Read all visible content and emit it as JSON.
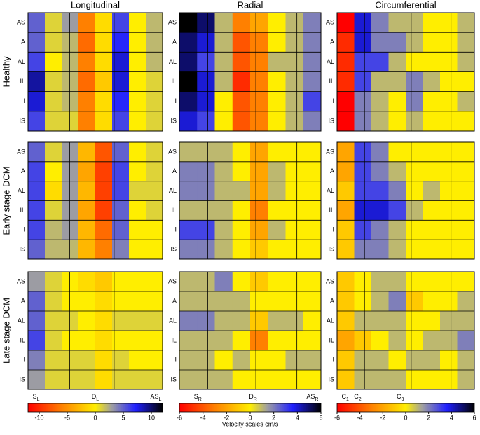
{
  "chart_data": {
    "type": "heatmap",
    "column_titles": [
      "Longitudinal",
      "Radial",
      "Circumferential"
    ],
    "row_titles": [
      "Healthy",
      "Early stage DCM",
      "Late stage DCM"
    ],
    "segments": [
      "AS",
      "A",
      "AL",
      "IL",
      "I",
      "IS"
    ],
    "colorbar_label": "Velocity scales cm/s",
    "scales": [
      {
        "lim": [
          -12,
          12
        ],
        "ticks": [
          -10,
          -5,
          0,
          5,
          10
        ],
        "events": [
          {
            "main": "S",
            "sub": "L"
          },
          {
            "main": "D",
            "sub": "L"
          },
          {
            "main": "AS",
            "sub": "L"
          }
        ]
      },
      {
        "lim": [
          -6,
          6
        ],
        "ticks": [
          -6,
          -4,
          -2,
          0,
          2,
          4,
          6
        ],
        "events": [
          {
            "main": "S",
            "sub": "R"
          },
          {
            "main": "D",
            "sub": "R"
          },
          {
            "main": "AS",
            "sub": "R"
          }
        ]
      },
      {
        "lim": [
          -6,
          6
        ],
        "ticks": [
          -6,
          -4,
          -2,
          0,
          2,
          4,
          6
        ],
        "events": [
          {
            "main": "C",
            "sub": "1"
          },
          {
            "main": "C",
            "sub": "2"
          },
          {
            "main": "C",
            "sub": "3"
          }
        ]
      }
    ],
    "panels": [
      [
        {
          "values": [
            [
              5,
              1,
              3,
              -6,
              -1,
              6,
              0,
              2
            ],
            [
              5,
              1,
              2,
              -7,
              -1,
              7,
              0,
              2
            ],
            [
              6,
              0,
              2,
              -6,
              -1,
              8,
              0,
              2
            ],
            [
              9,
              1,
              2,
              -7,
              -2,
              8,
              0,
              1
            ],
            [
              8,
              1,
              2,
              -6,
              -1,
              7,
              0,
              1
            ],
            [
              6,
              1,
              1,
              -6,
              -1,
              6,
              0,
              1
            ]
          ]
        },
        {
          "values": [
            [
              6,
              5,
              1,
              -3,
              -2,
              0,
              1,
              2
            ],
            [
              5,
              4,
              1,
              -4,
              -3,
              0,
              1,
              2
            ],
            [
              5,
              3,
              1,
              -4,
              -3,
              1,
              1,
              2
            ],
            [
              6,
              4,
              1,
              -5,
              -3,
              0,
              1,
              2
            ],
            [
              5,
              4,
              0,
              -4,
              -3,
              0,
              1,
              3
            ],
            [
              4,
              3,
              0,
              -4,
              -3,
              0,
              1,
              2
            ]
          ]
        },
        {
          "values": [
            [
              -6,
              4,
              2,
              1,
              1,
              0,
              0,
              1
            ],
            [
              -5,
              4,
              2,
              2,
              1,
              0,
              0,
              1
            ],
            [
              -5,
              3,
              3,
              1,
              0,
              0,
              0,
              1
            ],
            [
              -5,
              3,
              1,
              1,
              2,
              1,
              0,
              0
            ],
            [
              -6,
              2,
              1,
              0,
              2,
              0,
              0,
              1
            ],
            [
              -6,
              2,
              1,
              0,
              1,
              0,
              0,
              0
            ]
          ]
        }
      ],
      [
        {
          "values": [
            [
              5,
              1,
              3,
              -3,
              -8,
              5,
              0,
              1
            ],
            [
              6,
              0,
              3,
              -4,
              -9,
              6,
              0,
              1
            ],
            [
              6,
              -1,
              3,
              -3,
              -9,
              6,
              1,
              1
            ],
            [
              6,
              1,
              3,
              -4,
              -9,
              5,
              0,
              1
            ],
            [
              6,
              2,
              3,
              -3,
              -7,
              5,
              0,
              0
            ],
            [
              5,
              2,
              2,
              -3,
              -6,
              4,
              0,
              0
            ]
          ]
        },
        {
          "values": [
            [
              1,
              1,
              1,
              0,
              -2,
              0,
              0,
              0
            ],
            [
              2,
              2,
              1,
              0,
              -2,
              1,
              0,
              0
            ],
            [
              2,
              2,
              1,
              1,
              -2,
              1,
              0,
              0
            ],
            [
              1,
              1,
              1,
              0,
              -3,
              0,
              0,
              0
            ],
            [
              3,
              3,
              1,
              0,
              -2,
              1,
              0,
              0
            ],
            [
              2,
              2,
              1,
              0,
              -1,
              0,
              0,
              0
            ]
          ]
        },
        {
          "values": [
            [
              -2,
              3,
              2,
              0,
              0,
              0,
              0,
              0
            ],
            [
              -2,
              3,
              2,
              1,
              0,
              0,
              0,
              0
            ],
            [
              -1,
              3,
              3,
              2,
              0,
              1,
              0,
              0
            ],
            [
              -2,
              4,
              4,
              3,
              1,
              0,
              0,
              0
            ],
            [
              -1,
              3,
              2,
              1,
              0,
              0,
              0,
              0
            ],
            [
              -1,
              2,
              2,
              1,
              0,
              0,
              0,
              0
            ]
          ]
        }
      ],
      [
        {
          "values": [
            [
              3,
              1,
              0,
              -1,
              -2,
              0,
              0,
              0
            ],
            [
              5,
              1,
              0,
              0,
              -1,
              0,
              0,
              0
            ],
            [
              5,
              1,
              1,
              0,
              -1,
              1,
              1,
              1
            ],
            [
              6,
              1,
              0,
              0,
              -1,
              0,
              0,
              0
            ],
            [
              4,
              1,
              1,
              1,
              -1,
              1,
              0,
              0
            ],
            [
              3,
              1,
              1,
              1,
              -1,
              1,
              1,
              1
            ]
          ]
        },
        {
          "values": [
            [
              1,
              1,
              2,
              0,
              -1,
              0,
              0,
              0
            ],
            [
              1,
              1,
              1,
              1,
              0,
              0,
              0,
              0
            ],
            [
              2,
              2,
              1,
              1,
              -1,
              1,
              1,
              0
            ],
            [
              1,
              1,
              1,
              0,
              -3,
              0,
              0,
              0
            ],
            [
              1,
              1,
              0,
              1,
              0,
              0,
              1,
              1
            ],
            [
              1,
              1,
              1,
              0,
              0,
              0,
              0,
              0
            ]
          ]
        },
        {
          "values": [
            [
              -1,
              0,
              1,
              1,
              0,
              0,
              0,
              0
            ],
            [
              -1,
              0,
              1,
              2,
              -1,
              0,
              0,
              1
            ],
            [
              -1,
              1,
              1,
              1,
              0,
              0,
              1,
              1
            ],
            [
              -2,
              -1,
              0,
              1,
              0,
              1,
              1,
              2
            ],
            [
              -1,
              1,
              1,
              0,
              1,
              1,
              0,
              1
            ],
            [
              -1,
              1,
              1,
              1,
              0,
              0,
              0,
              1
            ]
          ]
        }
      ]
    ]
  }
}
